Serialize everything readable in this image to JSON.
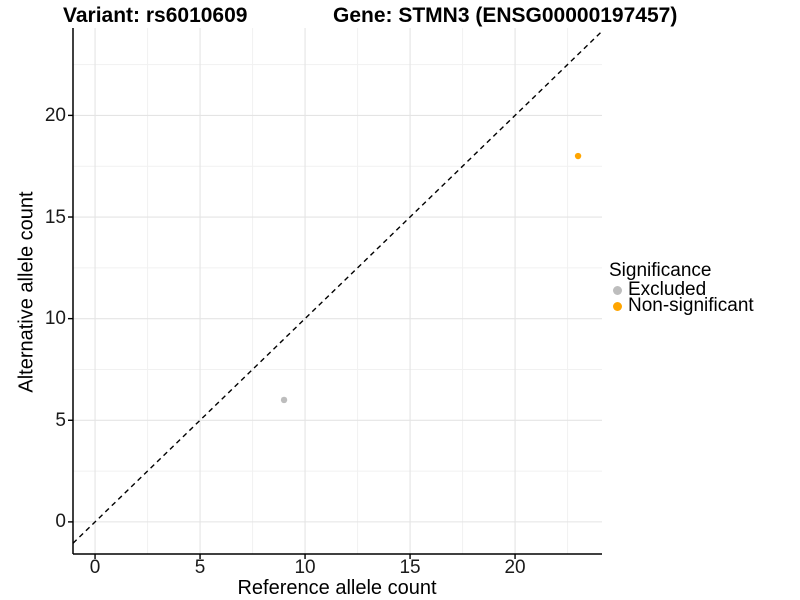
{
  "chart_data": {
    "type": "scatter",
    "titles": {
      "left": "Variant: rs6010609",
      "right": "Gene: STMN3 (ENSG00000197457)"
    },
    "xlabel": "Reference allele count",
    "ylabel": "Alternative allele count",
    "x_ticks": [
      0,
      5,
      10,
      15,
      20
    ],
    "y_ticks": [
      0,
      5,
      10,
      15,
      20
    ],
    "x_minor_ticks": [
      2.5,
      7.5,
      12.5,
      17.5,
      22.5
    ],
    "y_minor_ticks": [
      2.5,
      7.5,
      12.5,
      17.5,
      22.5
    ],
    "xlim": [
      -1.05,
      24.14
    ],
    "ylim": [
      -1.58,
      24.3
    ],
    "grid": true,
    "identity_line": {
      "show": true,
      "style": "dashed",
      "color": "#000000"
    },
    "series": [
      {
        "name": "Excluded",
        "color": "#BDBDBD",
        "points": [
          {
            "x": 9,
            "y": 6
          }
        ]
      },
      {
        "name": "Non-significant",
        "color": "#FFA500",
        "points": [
          {
            "x": 23,
            "y": 18
          }
        ]
      }
    ],
    "legend": {
      "title": "Significance",
      "position": "right",
      "items": [
        {
          "label": "Excluded",
          "color": "#BDBDBD"
        },
        {
          "label": "Non-significant",
          "color": "#FFA500"
        }
      ]
    },
    "colors": {
      "axis": "#000000",
      "tick_label": "#1a1a1a",
      "grid_major": "#e4e4e4",
      "grid_minor": "#f1f1f1",
      "background": "#ffffff"
    }
  }
}
